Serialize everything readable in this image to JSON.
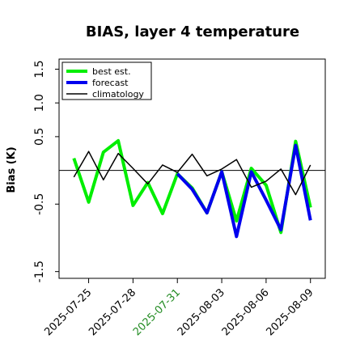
{
  "chart_data": {
    "type": "line",
    "title": "BIAS, layer 4 temperature",
    "ylabel": "Bias (K)",
    "xlabel": "",
    "ylim": [
      -1.6,
      1.65
    ],
    "xlim": [
      "2025-07-23",
      "2025-08-10"
    ],
    "yticks": [
      -1.5,
      -0.5,
      0.5,
      1.0,
      1.5
    ],
    "yticklabels": [
      "-1.5",
      "-0.5",
      "0.5",
      "1.0",
      "1.5"
    ],
    "xticks": [
      "2025-07-25",
      "2025-07-28",
      "2025-07-31",
      "2025-08-03",
      "2025-08-06",
      "2025-08-09"
    ],
    "xticklabels": [
      "2025-07-25",
      "2025-07-28",
      "2025-07-31",
      "2025-08-03",
      "2025-08-06",
      "2025-08-09"
    ],
    "highlighted_xtick": "2025-07-31",
    "highlight_color": "#228b22",
    "zero_line": 0,
    "grid": false,
    "legend_position": "upper-left",
    "x": [
      "2025-07-24",
      "2025-07-25",
      "2025-07-26",
      "2025-07-27",
      "2025-07-28",
      "2025-07-29",
      "2025-07-30",
      "2025-07-31",
      "2025-08-01",
      "2025-08-02",
      "2025-08-03",
      "2025-08-04",
      "2025-08-05",
      "2025-08-06",
      "2025-08-07",
      "2025-08-08",
      "2025-08-09"
    ],
    "series": [
      {
        "name": "best est.",
        "color": "#00ee00",
        "width": 4,
        "values": [
          0.18,
          -0.47,
          0.27,
          0.44,
          -0.52,
          -0.18,
          -0.64,
          -0.05,
          -0.26,
          -0.63,
          -0.02,
          -0.75,
          0.03,
          -0.22,
          -0.92,
          0.43,
          -0.55
        ]
      },
      {
        "name": "forecast",
        "color": "#0000ee",
        "width": 4,
        "values": [
          null,
          null,
          null,
          null,
          null,
          null,
          null,
          -0.05,
          -0.28,
          -0.63,
          -0.02,
          -0.98,
          -0.02,
          -0.44,
          -0.88,
          0.37,
          -0.74
        ]
      },
      {
        "name": "climatology",
        "color": "#000000",
        "width": 1.5,
        "values": [
          -0.1,
          0.28,
          -0.14,
          0.25,
          0.03,
          -0.2,
          0.08,
          -0.03,
          0.24,
          -0.08,
          0.02,
          0.16,
          -0.25,
          -0.16,
          0.02,
          -0.36,
          0.08
        ]
      }
    ]
  }
}
